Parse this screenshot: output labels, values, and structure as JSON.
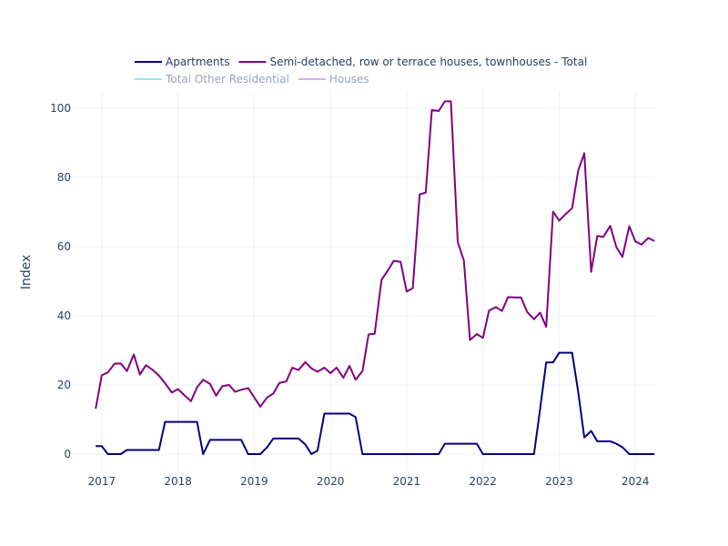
{
  "chart_data": {
    "type": "line",
    "title": "",
    "xlabel": "",
    "ylabel": "Index",
    "xlim": [
      2016.62,
      2024.26
    ],
    "ylim": [
      -5,
      105
    ],
    "x_ticks": [
      2017,
      2018,
      2019,
      2020,
      2021,
      2022,
      2023,
      2024
    ],
    "x_tick_labels": [
      "2017",
      "2018",
      "2019",
      "2020",
      "2021",
      "2022",
      "2023",
      "2024"
    ],
    "y_ticks": [
      0,
      20,
      40,
      60,
      80,
      100
    ],
    "y_tick_labels": [
      "0",
      "20",
      "40",
      "60",
      "80",
      "100"
    ],
    "grid": true,
    "legend_position": "top",
    "series": [
      {
        "name": "Apartments",
        "color": "#000080",
        "hidden": false,
        "x": [
          2016.92,
          2017.0,
          2017.08,
          2017.17,
          2017.25,
          2017.33,
          2017.42,
          2017.5,
          2017.58,
          2017.67,
          2017.75,
          2017.83,
          2017.92,
          2018.0,
          2018.08,
          2018.17,
          2018.25,
          2018.33,
          2018.42,
          2018.5,
          2018.58,
          2018.67,
          2018.75,
          2018.83,
          2018.92,
          2019.0,
          2019.08,
          2019.17,
          2019.25,
          2019.33,
          2019.42,
          2019.5,
          2019.58,
          2019.67,
          2019.75,
          2019.83,
          2019.92,
          2020.0,
          2020.08,
          2020.17,
          2020.25,
          2020.33,
          2020.42,
          2020.5,
          2020.58,
          2020.67,
          2020.75,
          2020.83,
          2020.92,
          2021.0,
          2021.08,
          2021.17,
          2021.25,
          2021.33,
          2021.42,
          2021.5,
          2021.58,
          2021.67,
          2021.75,
          2021.83,
          2021.92,
          2022.0,
          2022.08,
          2022.17,
          2022.25,
          2022.33,
          2022.42,
          2022.5,
          2022.58,
          2022.67,
          2022.75,
          2022.83,
          2022.92,
          2023.0,
          2023.08,
          2023.17,
          2023.25,
          2023.33,
          2023.42,
          2023.5,
          2023.58,
          2023.67,
          2023.75,
          2023.83,
          2023.92,
          2024.0,
          2024.08,
          2024.17,
          2024.25
        ],
        "y": [
          2.3,
          2.3,
          0,
          0,
          0,
          1.2,
          1.2,
          1.2,
          1.2,
          1.2,
          1.2,
          9.3,
          9.3,
          9.3,
          9.3,
          9.3,
          9.3,
          0,
          4.1,
          4.1,
          4.1,
          4.1,
          4.1,
          4.1,
          0,
          0,
          0,
          2.0,
          4.5,
          4.5,
          4.5,
          4.5,
          4.5,
          2.8,
          0,
          1.0,
          11.7,
          11.7,
          11.7,
          11.7,
          11.7,
          10.7,
          0,
          0,
          0,
          0,
          0,
          0,
          0,
          0,
          0,
          0,
          0,
          0,
          0,
          3.0,
          3.0,
          3.0,
          3.0,
          3.0,
          3.0,
          0,
          0,
          0,
          0,
          0,
          0,
          0,
          0,
          0,
          13.0,
          26.5,
          26.5,
          29.3,
          29.3,
          29.3,
          18.0,
          4.8,
          6.7,
          3.7,
          3.7,
          3.7,
          3.0,
          2.0,
          0,
          0,
          0,
          0,
          0
        ]
      },
      {
        "name": "Semi-detached, row or terrace houses, townhouses - Total",
        "color": "#800080",
        "hidden": false,
        "x": [
          2016.92,
          2017.0,
          2017.08,
          2017.17,
          2017.25,
          2017.33,
          2017.42,
          2017.5,
          2017.58,
          2017.67,
          2017.75,
          2017.83,
          2017.92,
          2018.0,
          2018.08,
          2018.17,
          2018.25,
          2018.33,
          2018.42,
          2018.5,
          2018.58,
          2018.67,
          2018.75,
          2018.83,
          2018.92,
          2019.0,
          2019.08,
          2019.17,
          2019.25,
          2019.33,
          2019.42,
          2019.5,
          2019.58,
          2019.67,
          2019.75,
          2019.83,
          2019.92,
          2020.0,
          2020.08,
          2020.17,
          2020.25,
          2020.33,
          2020.42,
          2020.5,
          2020.58,
          2020.67,
          2020.75,
          2020.83,
          2020.92,
          2021.0,
          2021.08,
          2021.17,
          2021.25,
          2021.33,
          2021.42,
          2021.5,
          2021.58,
          2021.67,
          2021.75,
          2021.83,
          2021.92,
          2022.0,
          2022.08,
          2022.17,
          2022.25,
          2022.33,
          2022.42,
          2022.5,
          2022.58,
          2022.67,
          2022.75,
          2022.83,
          2022.92,
          2023.0,
          2023.08,
          2023.17,
          2023.25,
          2023.33,
          2023.42,
          2023.5,
          2023.58,
          2023.67,
          2023.75,
          2023.83,
          2023.92,
          2024.0,
          2024.08,
          2024.17,
          2024.25
        ],
        "y": [
          13.1,
          22.8,
          23.6,
          26.2,
          26.2,
          24.0,
          28.8,
          23.0,
          25.7,
          24.3,
          22.7,
          20.5,
          17.8,
          18.8,
          17.1,
          15.3,
          19.3,
          21.5,
          20.3,
          16.9,
          19.6,
          20.0,
          18.0,
          18.6,
          19.1,
          16.4,
          13.7,
          16.4,
          17.5,
          20.6,
          21.0,
          25.0,
          24.3,
          26.6,
          24.8,
          23.8,
          25.0,
          23.4,
          25.0,
          22.1,
          25.5,
          21.5,
          24.0,
          34.6,
          34.8,
          50.4,
          53.0,
          55.9,
          55.6,
          47.0,
          48.0,
          75.1,
          75.6,
          99.5,
          99.2,
          102,
          102,
          61.3,
          56.0,
          33.0,
          34.7,
          33.6,
          41.5,
          42.5,
          41.4,
          45.4,
          45.3,
          45.3,
          41.1,
          39.0,
          40.9,
          36.8,
          70.1,
          67.5,
          69.3,
          71.1,
          82.0,
          87.0,
          52.7,
          63.1,
          62.8,
          66.0,
          59.9,
          57.0,
          65.9,
          61.5,
          60.6,
          62.5,
          61.6
        ]
      },
      {
        "name": "Total Other Residential",
        "color": "#7fe0ea",
        "hidden": true,
        "x": [],
        "y": []
      },
      {
        "name": "Houses",
        "color": "#c79cf0",
        "hidden": true,
        "x": [],
        "y": []
      }
    ]
  }
}
